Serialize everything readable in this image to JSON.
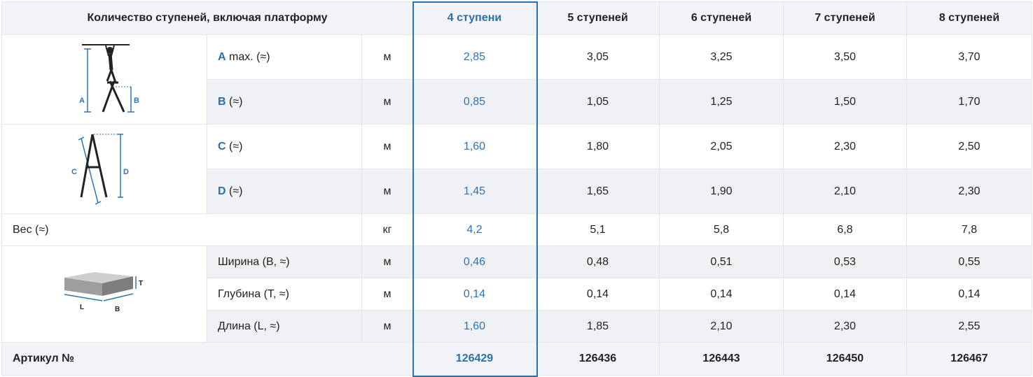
{
  "header": {
    "first": "Количество ступеней, включая платформу",
    "columns": [
      "4 ступени",
      "5 ступеней",
      "6 ступеней",
      "7 ступеней",
      "8 ступеней"
    ]
  },
  "rows": {
    "a": {
      "key": "A",
      "rest": " max. (≈)",
      "unit": "м",
      "values": [
        "2,85",
        "3,05",
        "3,25",
        "3,50",
        "3,70"
      ]
    },
    "b": {
      "key": "B",
      "rest": " (≈)",
      "unit": "м",
      "values": [
        "0,85",
        "1,05",
        "1,25",
        "1,50",
        "1,70"
      ]
    },
    "c": {
      "key": "C",
      "rest": " (≈)",
      "unit": "м",
      "values": [
        "1,60",
        "1,80",
        "2,05",
        "2,30",
        "2,50"
      ]
    },
    "d": {
      "key": "D",
      "rest": " (≈)",
      "unit": "м",
      "values": [
        "1,45",
        "1,65",
        "1,90",
        "2,10",
        "2,30"
      ]
    },
    "weight": {
      "label": "Вес (≈)",
      "unit": "кг",
      "values": [
        "4,2",
        "5,1",
        "5,8",
        "6,8",
        "7,8"
      ]
    },
    "width": {
      "label": "Ширина (B, ≈)",
      "unit": "м",
      "values": [
        "0,46",
        "0,48",
        "0,51",
        "0,53",
        "0,55"
      ]
    },
    "depth": {
      "label": "Глубина (T, ≈)",
      "unit": "м",
      "values": [
        "0,14",
        "0,14",
        "0,14",
        "0,14",
        "0,14"
      ]
    },
    "length": {
      "label": "Длина (L, ≈)",
      "unit": "м",
      "values": [
        "1,60",
        "1,85",
        "2,10",
        "2,30",
        "2,55"
      ]
    },
    "article": {
      "label": "Артикул №",
      "values": [
        "126429",
        "126436",
        "126443",
        "126450",
        "126467"
      ]
    }
  },
  "diagrams": {
    "ladder_height": {
      "labels": [
        "A",
        "B"
      ]
    },
    "ladder_folded": {
      "labels": [
        "C",
        "D"
      ]
    },
    "package": {
      "labels": [
        "T",
        "L",
        "B"
      ]
    }
  },
  "colors": {
    "accent": "#2b6fa8",
    "header_bg": "#f2f4f9",
    "row_gray": "#f0f1f4",
    "border": "#e2e5ea"
  }
}
